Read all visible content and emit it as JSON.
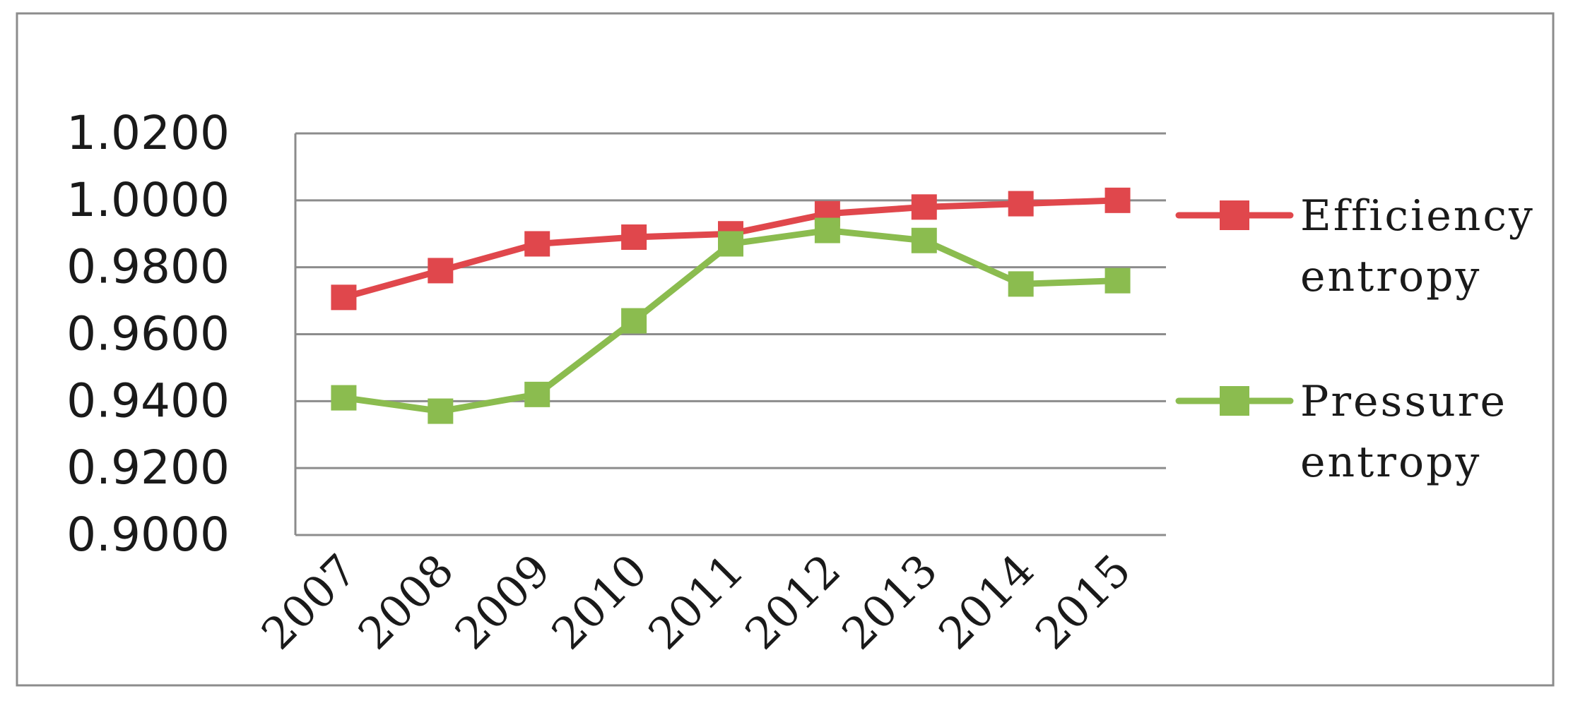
{
  "chart_data": {
    "type": "line",
    "title": "",
    "xlabel": "",
    "ylabel": "",
    "categories": [
      "2007",
      "2008",
      "2009",
      "2010",
      "2011",
      "2012",
      "2013",
      "2014",
      "2015"
    ],
    "y_ticks": [
      "1.0200",
      "1.0000",
      "0.9800",
      "0.9600",
      "0.9400",
      "0.9200",
      "0.9000"
    ],
    "ylim": [
      0.9,
      1.02
    ],
    "grid": true,
    "legend_position": "right",
    "series": [
      {
        "name": "Efficiency entropy",
        "label_lines": [
          "Efficiency",
          "entropy"
        ],
        "color": "#E0474C",
        "marker": "square",
        "values": [
          0.971,
          0.979,
          0.987,
          0.989,
          0.99,
          0.996,
          0.998,
          0.999,
          1.0
        ]
      },
      {
        "name": "Pressure entropy",
        "label_lines": [
          "Pressure",
          "entropy"
        ],
        "color": "#8BBC4F",
        "marker": "square",
        "values": [
          0.941,
          0.937,
          0.942,
          0.964,
          0.987,
          0.991,
          0.988,
          0.975,
          0.976
        ]
      }
    ]
  },
  "colors": {
    "frame": "#8c8c8c",
    "gridline": "#8c8c8c",
    "axis": "#8c8c8c",
    "text": "#1a1a1a"
  }
}
